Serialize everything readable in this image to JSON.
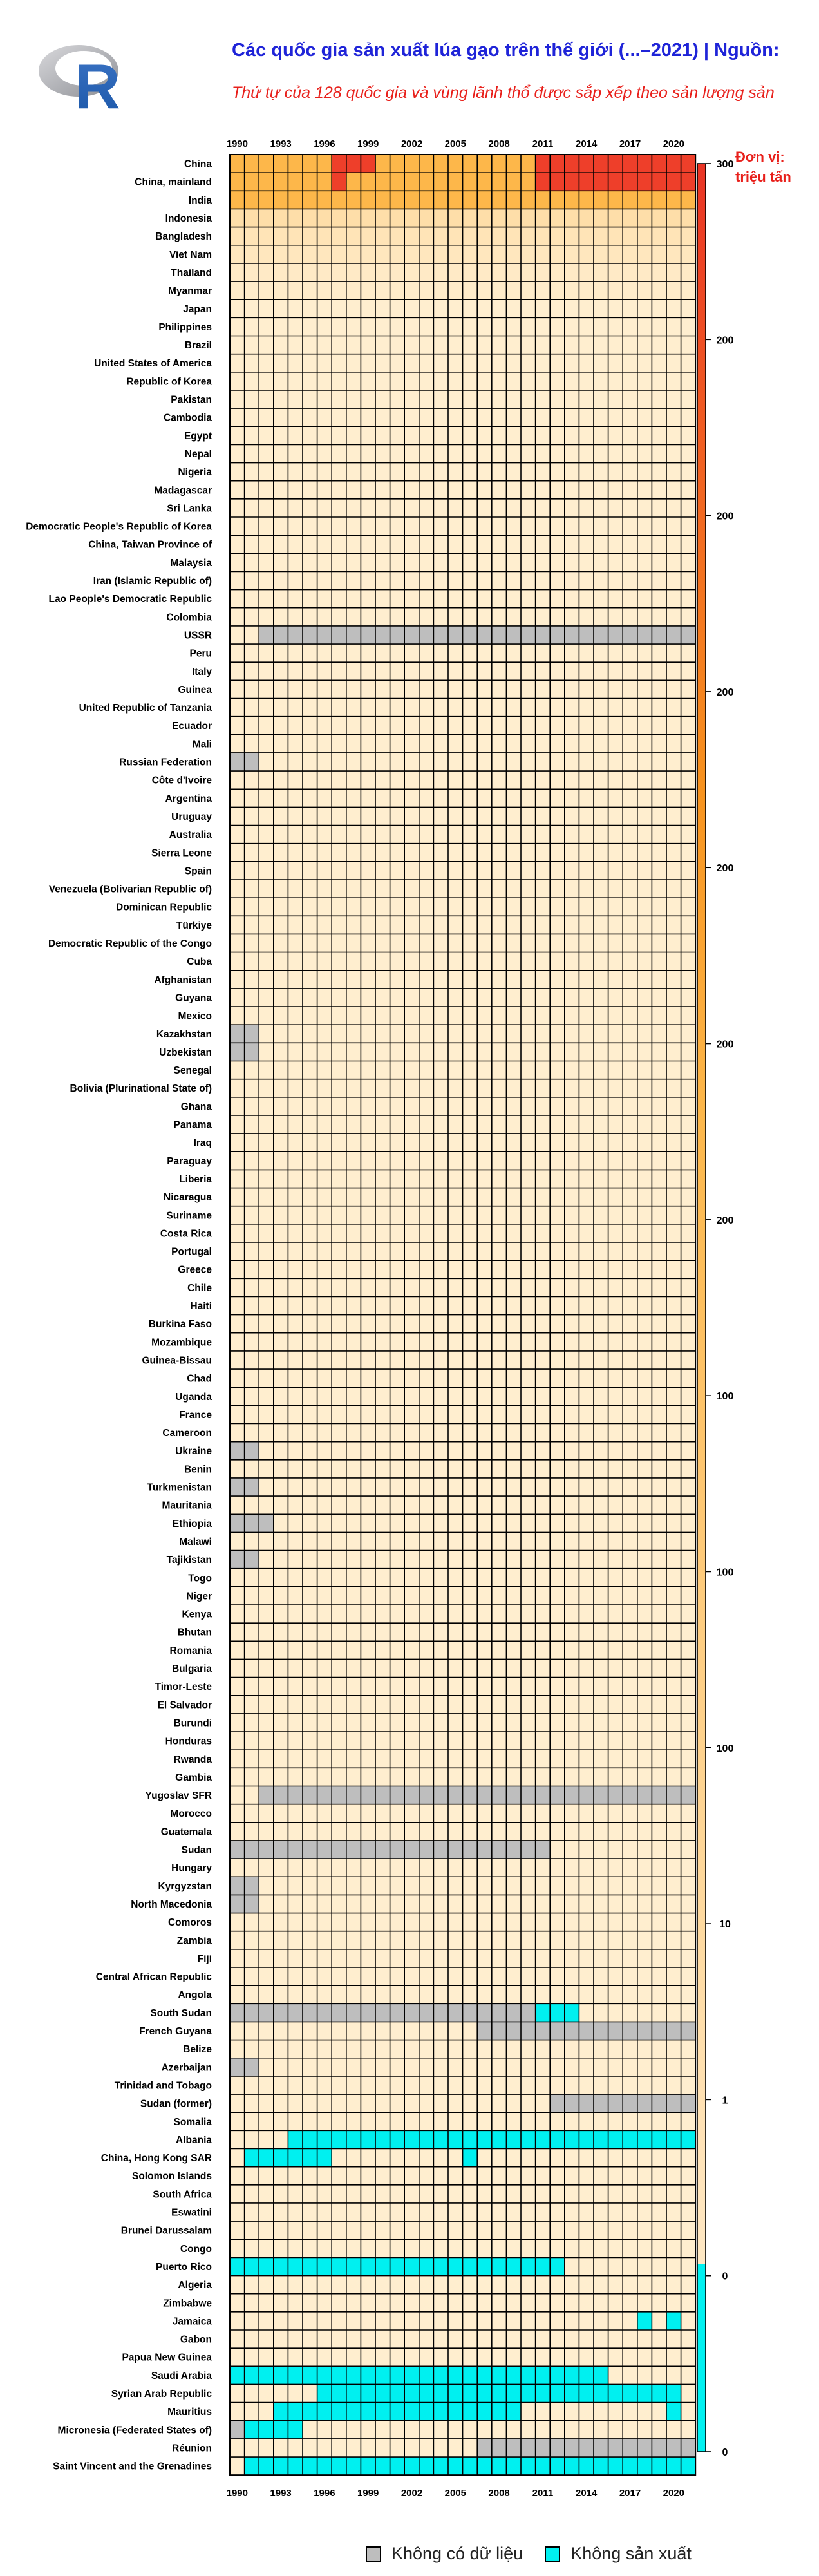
{
  "page": {
    "title": "Các quốc gia sản xuất lúa gạo trên thế giới (...–2021) | Nguồn:",
    "subtitle": "Thứ tự của 128 quốc gia và vùng lãnh thổ được sắp xếp theo sản lượng sản",
    "unit_line1": "Đơn vị:",
    "unit_line2": "triệu tấn",
    "logo_text": "R"
  },
  "colors": {
    "nodata": "#bebebe",
    "noproduction": "#00f0f0",
    "low": "#ffeecf",
    "mid": "#fdb74a",
    "high": "#ee3f2a"
  },
  "legend": {
    "nodata_label": "Không có dữ liệu",
    "noproduction_label": "Không sản xuất"
  },
  "chart_data": {
    "type": "heatmap",
    "title": "",
    "year_start": 1990,
    "year_end": 2021,
    "year_tick_labels": [
      "1990",
      "1993",
      "1996",
      "1999",
      "2002",
      "2005",
      "2008",
      "2011",
      "2014",
      "2017",
      "2020"
    ],
    "colorbar_tick_labels": [
      "300",
      "200",
      "200",
      "200",
      "200",
      "200",
      "200",
      "100",
      "100",
      "100",
      "10",
      "1",
      "0",
      "0"
    ],
    "value_units": "triệu tấn",
    "countries": [
      "China",
      "China, mainland",
      "India",
      "Indonesia",
      "Bangladesh",
      "Viet Nam",
      "Thailand",
      "Myanmar",
      "Japan",
      "Philippines",
      "Brazil",
      "United States of America",
      "Republic of Korea",
      "Pakistan",
      "Cambodia",
      "Egypt",
      "Nepal",
      "Nigeria",
      "Madagascar",
      "Sri Lanka",
      "Democratic People's Republic of Korea",
      "China, Taiwan Province of",
      "Malaysia",
      "Iran (Islamic Republic of)",
      "Lao People's Democratic Republic",
      "Colombia",
      "USSR",
      "Peru",
      "Italy",
      "Guinea",
      "United Republic of Tanzania",
      "Ecuador",
      "Mali",
      "Russian Federation",
      "Côte d'Ivoire",
      "Argentina",
      "Uruguay",
      "Australia",
      "Sierra Leone",
      "Spain",
      "Venezuela (Bolivarian Republic of)",
      "Dominican Republic",
      "Türkiye",
      "Democratic Republic of the Congo",
      "Cuba",
      "Afghanistan",
      "Guyana",
      "Mexico",
      "Kazakhstan",
      "Uzbekistan",
      "Senegal",
      "Bolivia (Plurinational State of)",
      "Ghana",
      "Panama",
      "Iraq",
      "Paraguay",
      "Liberia",
      "Nicaragua",
      "Suriname",
      "Costa Rica",
      "Portugal",
      "Greece",
      "Chile",
      "Haiti",
      "Burkina Faso",
      "Mozambique",
      "Guinea-Bissau",
      "Chad",
      "Uganda",
      "France",
      "Cameroon",
      "Ukraine",
      "Benin",
      "Turkmenistan",
      "Mauritania",
      "Ethiopia",
      "Malawi",
      "Tajikistan",
      "Togo",
      "Niger",
      "Kenya",
      "Bhutan",
      "Romania",
      "Bulgaria",
      "Timor-Leste",
      "El Salvador",
      "Burundi",
      "Honduras",
      "Rwanda",
      "Gambia",
      "Yugoslav SFR",
      "Morocco",
      "Guatemala",
      "Sudan",
      "Hungary",
      "Kyrgyzstan",
      "North Macedonia",
      "Comoros",
      "Zambia",
      "Fiji",
      "Central African Republic",
      "Angola",
      "South Sudan",
      "French Guyana",
      "Belize",
      "Azerbaijan",
      "Trinidad and Tobago",
      "Sudan (former)",
      "Somalia",
      "Albania",
      "China, Hong Kong SAR",
      "Solomon Islands",
      "South Africa",
      "Eswatini",
      "Brunei Darussalam",
      "Congo",
      "Puerto Rico",
      "Algeria",
      "Zimbabwe",
      "Jamaica",
      "Gabon",
      "Papua New Guinea",
      "Saudi Arabia",
      "Syrian Arab Republic",
      "Mauritius",
      "Micronesia (Federated States of)",
      "Réunion",
      "Saint Vincent and the Grenadines"
    ],
    "status_rules": [
      {
        "country": "USSR",
        "status": "nodata",
        "from": 1992,
        "to": 2021
      },
      {
        "country": "Russian Federation",
        "status": "nodata",
        "from": 1990,
        "to": 1991
      },
      {
        "country": "Kazakhstan",
        "status": "nodata",
        "from": 1990,
        "to": 1991
      },
      {
        "country": "Uzbekistan",
        "status": "nodata",
        "from": 1990,
        "to": 1991
      },
      {
        "country": "Ukraine",
        "status": "nodata",
        "from": 1990,
        "to": 1991
      },
      {
        "country": "Turkmenistan",
        "status": "nodata",
        "from": 1990,
        "to": 1991
      },
      {
        "country": "Ethiopia",
        "status": "nodata",
        "from": 1990,
        "to": 1992
      },
      {
        "country": "Tajikistan",
        "status": "nodata",
        "from": 1990,
        "to": 1991
      },
      {
        "country": "Yugoslav SFR",
        "status": "nodata",
        "from": 1992,
        "to": 2021
      },
      {
        "country": "Sudan",
        "status": "nodata",
        "from": 1990,
        "to": 2011
      },
      {
        "country": "Kyrgyzstan",
        "status": "nodata",
        "from": 1990,
        "to": 1991
      },
      {
        "country": "North Macedonia",
        "status": "nodata",
        "from": 1990,
        "to": 1991
      },
      {
        "country": "South Sudan",
        "status": "nodata",
        "from": 1990,
        "to": 2010
      },
      {
        "country": "South Sudan",
        "status": "noproduction",
        "from": 2011,
        "to": 2013
      },
      {
        "country": "French Guyana",
        "status": "nodata",
        "from": 2007,
        "to": 2021
      },
      {
        "country": "Azerbaijan",
        "status": "nodata",
        "from": 1990,
        "to": 1991
      },
      {
        "country": "Sudan (former)",
        "status": "nodata",
        "from": 2012,
        "to": 2021
      },
      {
        "country": "Albania",
        "status": "noproduction",
        "from": 1994,
        "to": 2021
      },
      {
        "country": "China, Hong Kong SAR",
        "status": "noproduction",
        "from": 1991,
        "to": 1996
      },
      {
        "country": "China, Hong Kong SAR",
        "status": "noproduction",
        "from": 2006,
        "to": 2006
      },
      {
        "country": "Puerto Rico",
        "status": "noproduction",
        "from": 1990,
        "to": 2012
      },
      {
        "country": "Jamaica",
        "status": "noproduction",
        "from": 2018,
        "to": 2018
      },
      {
        "country": "Jamaica",
        "status": "noproduction",
        "from": 2020,
        "to": 2020
      },
      {
        "country": "Saudi Arabia",
        "status": "noproduction",
        "from": 1990,
        "to": 2015
      },
      {
        "country": "Syrian Arab Republic",
        "status": "noproduction",
        "from": 1996,
        "to": 2020
      },
      {
        "country": "Mauritius",
        "status": "noproduction",
        "from": 1993,
        "to": 2009
      },
      {
        "country": "Mauritius",
        "status": "noproduction",
        "from": 2020,
        "to": 2020
      },
      {
        "country": "Micronesia (Federated States of)",
        "status": "nodata",
        "from": 1990,
        "to": 1990
      },
      {
        "country": "Micronesia (Federated States of)",
        "status": "noproduction",
        "from": 1991,
        "to": 1994
      },
      {
        "country": "Réunion",
        "status": "nodata",
        "from": 2007,
        "to": 2021
      },
      {
        "country": "Saint Vincent and the Grenadines",
        "status": "noproduction",
        "from": 1991,
        "to": 2021
      }
    ],
    "values": [
      {
        "country": "China",
        "segments": [
          {
            "from": 1990,
            "to": 1996,
            "value": 190
          },
          {
            "from": 1997,
            "to": 1999,
            "value": 240
          },
          {
            "from": 2000,
            "to": 2010,
            "value": 195
          },
          {
            "from": 2011,
            "to": 2021,
            "value": 260
          }
        ]
      },
      {
        "country": "China, mainland",
        "segments": [
          {
            "from": 1990,
            "to": 1996,
            "value": 185
          },
          {
            "from": 1997,
            "to": 1997,
            "value": 235
          },
          {
            "from": 1998,
            "to": 2010,
            "value": 190
          },
          {
            "from": 2011,
            "to": 2021,
            "value": 255
          }
        ]
      },
      {
        "country": "India",
        "segments": [
          {
            "from": 1990,
            "to": 2021,
            "value": 150
          }
        ]
      },
      {
        "country": "Indonesia",
        "segments": [
          {
            "from": 1990,
            "to": 2021,
            "value": 60
          }
        ]
      },
      {
        "country": "Bangladesh",
        "segments": [
          {
            "from": 1990,
            "to": 2021,
            "value": 45
          }
        ]
      },
      {
        "country": "Viet Nam",
        "segments": [
          {
            "from": 1990,
            "to": 2021,
            "value": 38
          }
        ]
      },
      {
        "country": "Thailand",
        "segments": [
          {
            "from": 1990,
            "to": 2021,
            "value": 30
          }
        ]
      },
      {
        "country": "Myanmar",
        "segments": [
          {
            "from": 1990,
            "to": 2021,
            "value": 25
          }
        ]
      },
      {
        "country": "Japan",
        "segments": [
          {
            "from": 1990,
            "to": 2021,
            "value": 11
          }
        ]
      },
      {
        "country": "Philippines",
        "segments": [
          {
            "from": 1990,
            "to": 2021,
            "value": 15
          }
        ]
      },
      {
        "country": "Brazil",
        "segments": [
          {
            "from": 1990,
            "to": 2021,
            "value": 11
          }
        ]
      }
    ],
    "default_value": 1
  }
}
